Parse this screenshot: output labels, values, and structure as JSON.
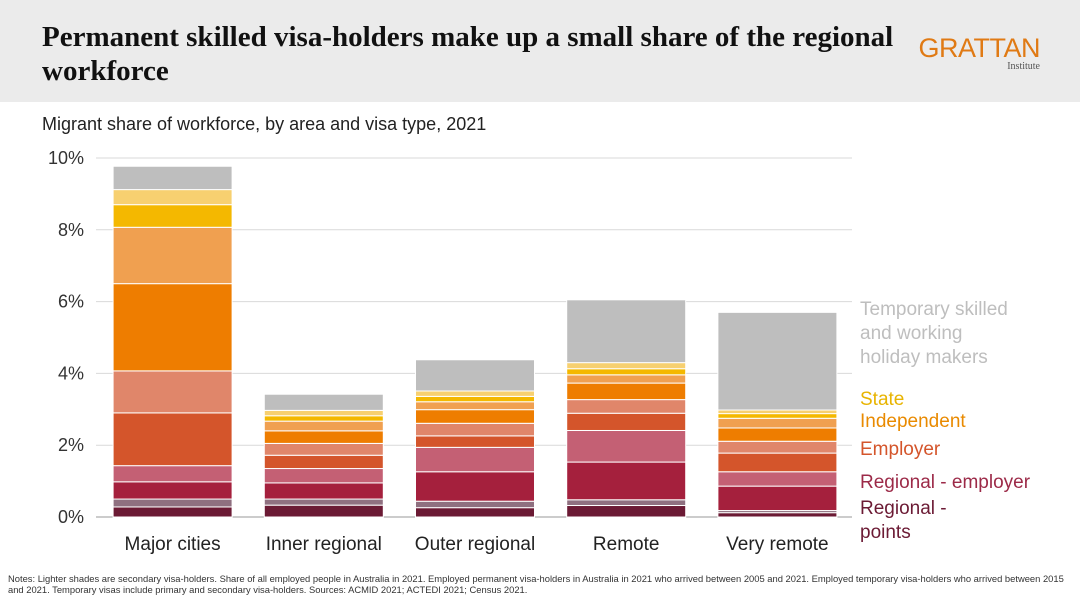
{
  "header": {
    "title": "Permanent skilled visa-holders make up a small share of the regional workforce",
    "logo_text": "GRATTAN",
    "logo_subtext": "Institute"
  },
  "notes": "Notes: Lighter shades are secondary visa-holders. Share of all employed people in Australia in 2021. Employed permanent visa-holders in Australia in 2021 who arrived between 2005 and  2021. Employed temporary visa-holders who arrived between 2015 and 2021. Temporary visas include primary and secondary visa-holders. Sources: ACMID 2021; ACTEDI 2021; Census 2021.",
  "chart_data": {
    "type": "bar",
    "stacked": true,
    "title": "Migrant share of workforce, by area and visa type, 2021",
    "xlabel": "",
    "ylabel": "",
    "ylim": [
      0,
      10
    ],
    "yticks": [
      0,
      2,
      4,
      6,
      8,
      10
    ],
    "ytick_labels": [
      "0%",
      "2%",
      "4%",
      "6%",
      "8%",
      "10%"
    ],
    "grid": true,
    "legend_position": "right",
    "categories": [
      "Major cities",
      "Inner regional",
      "Outer regional",
      "Remote",
      "Very remote"
    ],
    "series": [
      {
        "color": "#6b1a34",
        "values": [
          0.28,
          0.33,
          0.26,
          0.32,
          0.12
        ]
      },
      {
        "color": "#8f7080",
        "values": [
          0.22,
          0.17,
          0.18,
          0.16,
          0.06
        ]
      },
      {
        "color": "#a5203d",
        "values": [
          0.48,
          0.45,
          0.82,
          1.05,
          0.68
        ]
      },
      {
        "color": "#c46074",
        "values": [
          0.45,
          0.4,
          0.68,
          0.88,
          0.4
        ]
      },
      {
        "color": "#d4552b",
        "values": [
          1.47,
          0.37,
          0.32,
          0.48,
          0.52
        ]
      },
      {
        "color": "#e0866a",
        "values": [
          1.17,
          0.33,
          0.35,
          0.38,
          0.33
        ]
      },
      {
        "color": "#ee7d00",
        "values": [
          2.43,
          0.35,
          0.38,
          0.46,
          0.37
        ]
      },
      {
        "color": "#f0a050",
        "values": [
          1.57,
          0.27,
          0.22,
          0.23,
          0.27
        ]
      },
      {
        "color": "#f4b800",
        "values": [
          0.63,
          0.15,
          0.15,
          0.17,
          0.13
        ]
      },
      {
        "color": "#f7d070",
        "values": [
          0.42,
          0.15,
          0.15,
          0.17,
          0.1
        ]
      },
      {
        "name": "Temporary skilled and working holiday makers",
        "color": "#bebebe",
        "values": [
          0.65,
          0.45,
          0.87,
          1.75,
          2.72
        ]
      }
    ],
    "legend": [
      {
        "label": "Temporary skilled and working holiday makers",
        "lines": [
          "Temporary skilled",
          "and working",
          "holiday makers"
        ],
        "color": "#bebebe"
      },
      {
        "label": "State",
        "lines": [
          "State"
        ],
        "color": "#e8b400"
      },
      {
        "label": "Independent",
        "lines": [
          "Independent"
        ],
        "color": "#e98a00"
      },
      {
        "label": "Employer",
        "lines": [
          "Employer"
        ],
        "color": "#d4552b"
      },
      {
        "label": "Regional - employer",
        "lines": [
          "Regional - employer"
        ],
        "color": "#9c2a48"
      },
      {
        "label": "Regional - points",
        "lines": [
          "Regional -",
          "points"
        ],
        "color": "#6b1a34"
      }
    ]
  }
}
